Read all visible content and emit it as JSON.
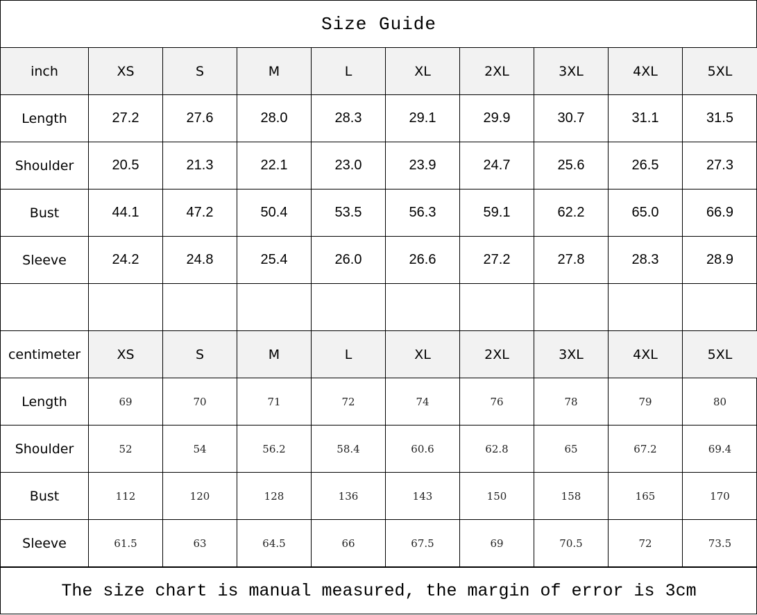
{
  "title": "Size Guide",
  "footer": "The size chart is manual measured, the margin of error is 3cm",
  "colors": {
    "header_bg": "#f2f2f2",
    "border": "#000000"
  },
  "sizes": [
    "XS",
    "S",
    "M",
    "L",
    "XL",
    "2XL",
    "3XL",
    "4XL",
    "5XL"
  ],
  "inch": {
    "unit_label": "inch",
    "rows": [
      {
        "label": "Length",
        "values": [
          "27.2",
          "27.6",
          "28.0",
          "28.3",
          "29.1",
          "29.9",
          "30.7",
          "31.1",
          "31.5"
        ]
      },
      {
        "label": "Shoulder",
        "values": [
          "20.5",
          "21.3",
          "22.1",
          "23.0",
          "23.9",
          "24.7",
          "25.6",
          "26.5",
          "27.3"
        ]
      },
      {
        "label": "Bust",
        "values": [
          "44.1",
          "47.2",
          "50.4",
          "53.5",
          "56.3",
          "59.1",
          "62.2",
          "65.0",
          "66.9"
        ]
      },
      {
        "label": "Sleeve",
        "values": [
          "24.2",
          "24.8",
          "25.4",
          "26.0",
          "26.6",
          "27.2",
          "27.8",
          "28.3",
          "28.9"
        ]
      }
    ]
  },
  "centimeter": {
    "unit_label": "centimeter",
    "rows": [
      {
        "label": "Length",
        "values": [
          "69",
          "70",
          "71",
          "72",
          "74",
          "76",
          "78",
          "79",
          "80"
        ]
      },
      {
        "label": "Shoulder",
        "values": [
          "52",
          "54",
          "56.2",
          "58.4",
          "60.6",
          "62.8",
          "65",
          "67.2",
          "69.4"
        ]
      },
      {
        "label": "Bust",
        "values": [
          "112",
          "120",
          "128",
          "136",
          "143",
          "150",
          "158",
          "165",
          "170"
        ]
      },
      {
        "label": "Sleeve",
        "values": [
          "61.5",
          "63",
          "64.5",
          "66",
          "67.5",
          "69",
          "70.5",
          "72",
          "73.5"
        ]
      }
    ]
  }
}
